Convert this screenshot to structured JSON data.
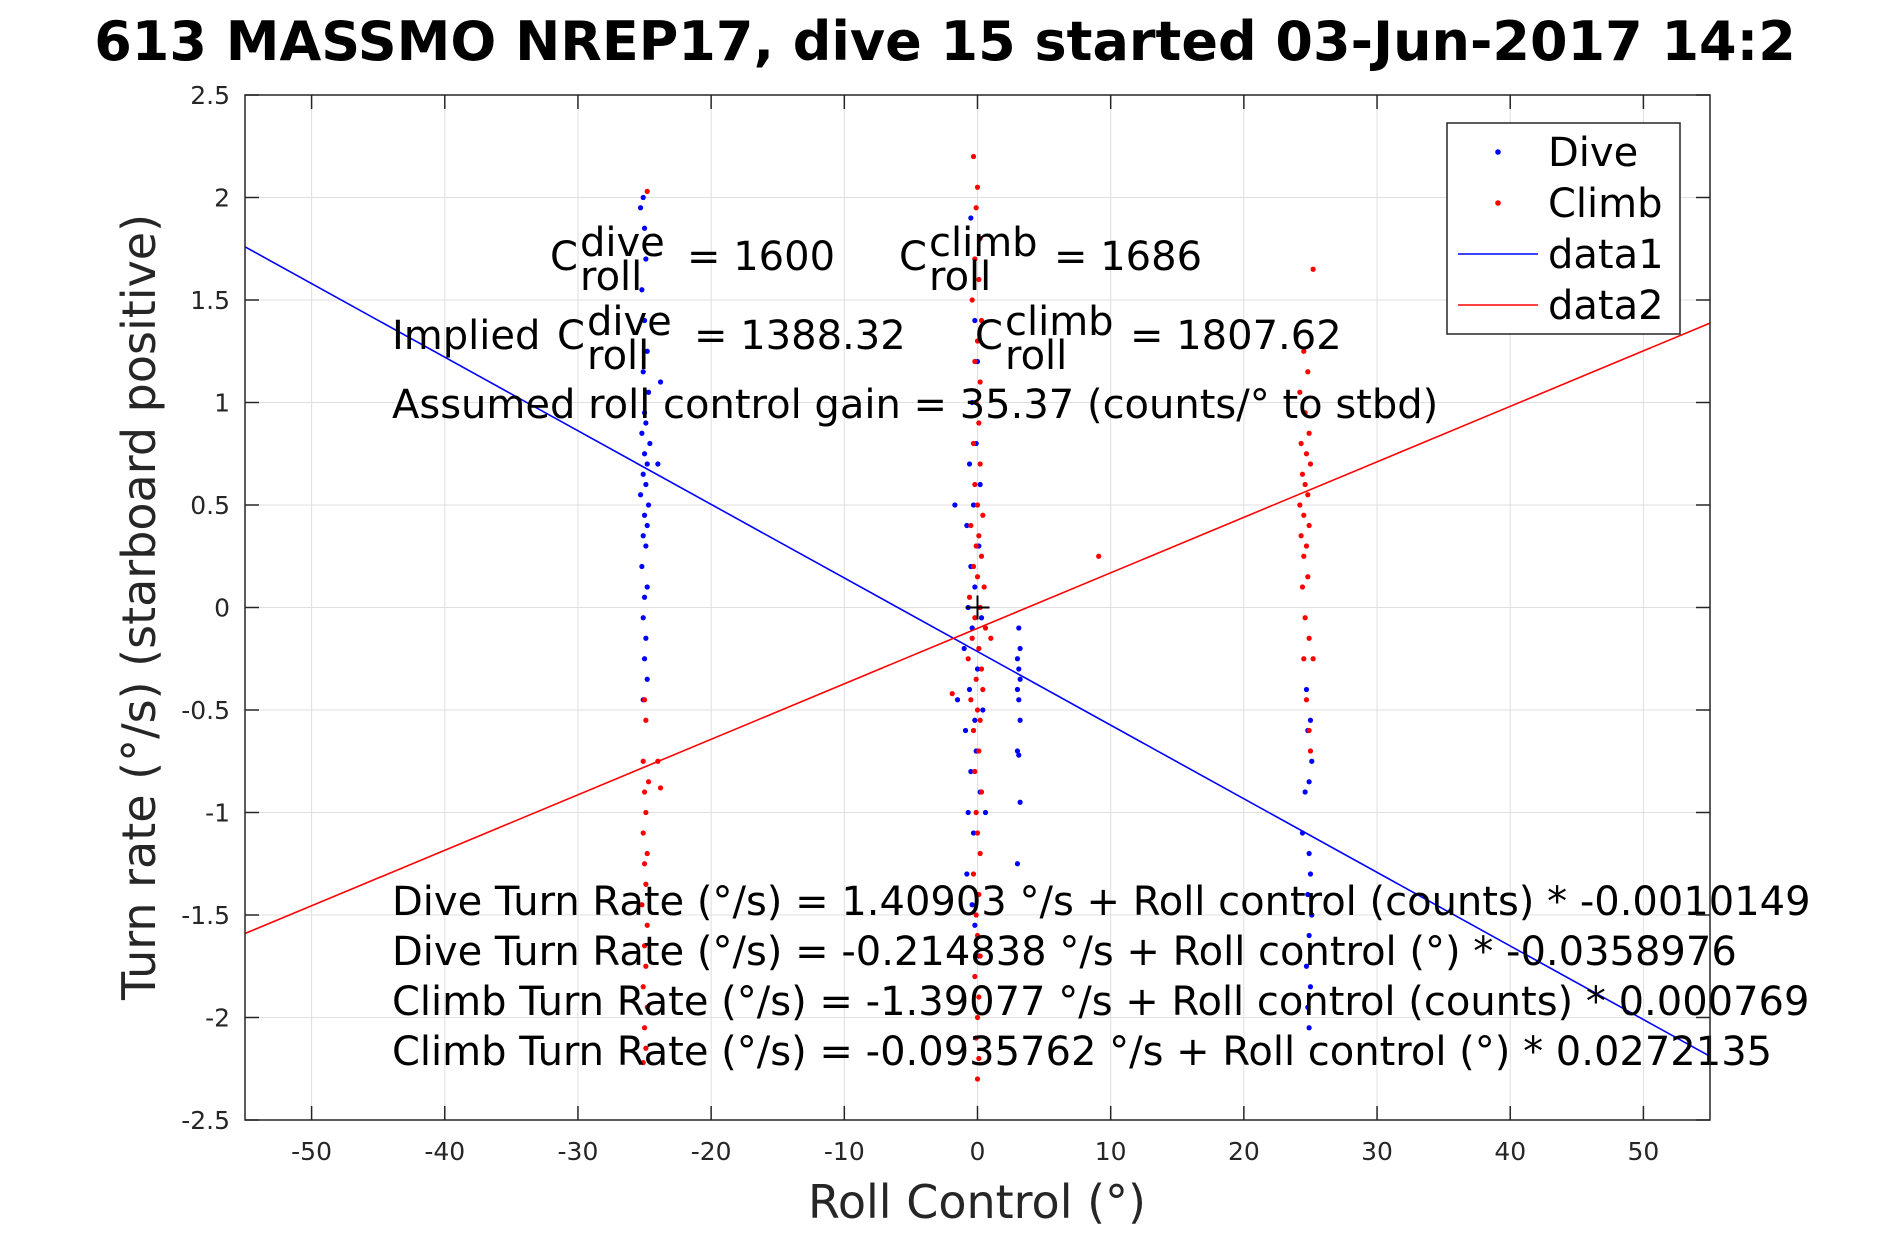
{
  "figure": {
    "title": "613 MASSMO NREP17, dive 15 started 03-Jun-2017 14:2"
  },
  "chart_data": {
    "type": "scatter",
    "title": "613 MASSMO NREP17, dive 15 started 03-Jun-2017 14:2",
    "xlabel": "Roll Control (°)",
    "ylabel": "Turn rate (°/s) (starboard positive)",
    "xlim": [
      -55,
      55
    ],
    "ylim": [
      -2.5,
      2.5
    ],
    "xticks": [
      -50,
      -40,
      -30,
      -20,
      -10,
      0,
      10,
      20,
      30,
      40,
      50
    ],
    "yticks": [
      2.5,
      2,
      1.5,
      1,
      0.5,
      0,
      -0.5,
      -1,
      -1.5,
      -2,
      -2.5
    ],
    "ytick_labels": [
      "2.5",
      "2",
      "1.5",
      "1",
      "0.5",
      "0",
      "-0.5",
      "-1",
      "-1.5",
      "-2",
      "-2.5"
    ],
    "grid": true,
    "legend_position": "top-right",
    "series": [
      {
        "name": "Dive",
        "kind": "points",
        "color": "#0000ff",
        "points": [
          [
            -25.1,
            2.0
          ],
          [
            -25.3,
            1.95
          ],
          [
            -25.0,
            1.85
          ],
          [
            -24.9,
            1.7
          ],
          [
            -25.2,
            1.55
          ],
          [
            -25.0,
            1.4
          ],
          [
            -24.8,
            1.25
          ],
          [
            -25.1,
            1.15
          ],
          [
            -24.7,
            1.05
          ],
          [
            -25.0,
            0.95
          ],
          [
            -24.9,
            0.9
          ],
          [
            -25.2,
            0.85
          ],
          [
            -24.6,
            0.8
          ],
          [
            -25.0,
            0.75
          ],
          [
            -24.8,
            0.7
          ],
          [
            -25.1,
            0.65
          ],
          [
            -24.9,
            0.6
          ],
          [
            -25.3,
            0.55
          ],
          [
            -24.7,
            0.5
          ],
          [
            -25.0,
            0.45
          ],
          [
            -24.8,
            0.4
          ],
          [
            -25.1,
            0.35
          ],
          [
            -24.9,
            0.3
          ],
          [
            -25.2,
            0.2
          ],
          [
            -24.8,
            0.1
          ],
          [
            -25.0,
            0.05
          ],
          [
            -25.1,
            -0.05
          ],
          [
            -24.9,
            -0.15
          ],
          [
            -25.0,
            -0.25
          ],
          [
            -24.8,
            -0.35
          ],
          [
            -25.1,
            -0.45
          ],
          [
            -23.8,
            1.1
          ],
          [
            -24.0,
            0.7
          ],
          [
            -0.5,
            1.9
          ],
          [
            -0.2,
            1.4
          ],
          [
            0.0,
            1.2
          ],
          [
            -0.4,
            1.0
          ],
          [
            -0.1,
            0.8
          ],
          [
            -0.6,
            0.7
          ],
          [
            0.2,
            0.6
          ],
          [
            -0.3,
            0.5
          ],
          [
            -0.8,
            0.4
          ],
          [
            0.1,
            0.3
          ],
          [
            -0.5,
            0.2
          ],
          [
            -0.2,
            0.1
          ],
          [
            -0.7,
            0.0
          ],
          [
            0.3,
            -0.05
          ],
          [
            -0.4,
            -0.1
          ],
          [
            -1.0,
            -0.2
          ],
          [
            0.0,
            -0.3
          ],
          [
            -0.6,
            -0.4
          ],
          [
            -1.5,
            -0.45
          ],
          [
            0.4,
            -0.5
          ],
          [
            -0.2,
            -0.55
          ],
          [
            -0.9,
            -0.6
          ],
          [
            -0.1,
            -0.7
          ],
          [
            -0.5,
            -0.8
          ],
          [
            0.2,
            -0.9
          ],
          [
            -0.7,
            -1.0
          ],
          [
            -0.3,
            -1.1
          ],
          [
            0.6,
            -1.0
          ],
          [
            -1.7,
            0.5
          ],
          [
            -0.8,
            -1.3
          ],
          [
            -0.4,
            -1.45
          ],
          [
            -0.2,
            -1.55
          ],
          [
            0.1,
            -1.7
          ],
          [
            3.1,
            -0.1
          ],
          [
            3.2,
            -0.2
          ],
          [
            3.0,
            -0.25
          ],
          [
            3.1,
            -0.3
          ],
          [
            3.2,
            -0.35
          ],
          [
            3.0,
            -0.4
          ],
          [
            3.1,
            -0.45
          ],
          [
            3.2,
            -0.55
          ],
          [
            3.0,
            -0.7
          ],
          [
            3.1,
            -0.72
          ],
          [
            3.2,
            -0.95
          ],
          [
            3.0,
            -1.25
          ],
          [
            24.7,
            -0.4
          ],
          [
            25.0,
            -0.55
          ],
          [
            24.8,
            -0.6
          ],
          [
            25.1,
            -0.75
          ],
          [
            24.9,
            -0.85
          ],
          [
            24.6,
            -0.9
          ],
          [
            24.4,
            -1.1
          ],
          [
            24.9,
            -1.2
          ],
          [
            25.0,
            -1.3
          ],
          [
            24.8,
            -1.4
          ],
          [
            25.1,
            -1.5
          ],
          [
            24.9,
            -1.6
          ],
          [
            24.7,
            -1.75
          ],
          [
            25.0,
            -1.85
          ],
          [
            24.8,
            -1.95
          ],
          [
            24.9,
            -2.05
          ]
        ]
      },
      {
        "name": "Climb",
        "kind": "points",
        "color": "#ff0000",
        "points": [
          [
            -24.8,
            2.03
          ],
          [
            -25.0,
            -0.45
          ],
          [
            -24.9,
            -0.55
          ],
          [
            -25.1,
            -0.75
          ],
          [
            -24.0,
            -0.75
          ],
          [
            -23.8,
            -0.88
          ],
          [
            -24.7,
            -0.85
          ],
          [
            -25.0,
            -0.9
          ],
          [
            -24.9,
            -1.0
          ],
          [
            -25.1,
            -1.1
          ],
          [
            -24.8,
            -1.2
          ],
          [
            -25.0,
            -1.25
          ],
          [
            -24.9,
            -1.35
          ],
          [
            -25.2,
            -1.45
          ],
          [
            -24.8,
            -1.55
          ],
          [
            -25.0,
            -1.65
          ],
          [
            -24.9,
            -1.75
          ],
          [
            -25.1,
            -1.85
          ],
          [
            -24.8,
            -1.95
          ],
          [
            -25.0,
            -2.05
          ],
          [
            -24.9,
            -2.15
          ],
          [
            -25.1,
            -2.22
          ],
          [
            -0.3,
            2.2
          ],
          [
            0.0,
            2.05
          ],
          [
            -0.1,
            1.95
          ],
          [
            0.2,
            1.8
          ],
          [
            -0.2,
            1.7
          ],
          [
            0.1,
            1.6
          ],
          [
            -0.4,
            1.5
          ],
          [
            0.3,
            1.4
          ],
          [
            0.0,
            1.3
          ],
          [
            -0.2,
            1.2
          ],
          [
            0.2,
            1.1
          ],
          [
            -0.1,
            1.0
          ],
          [
            0.1,
            0.9
          ],
          [
            -0.3,
            0.8
          ],
          [
            0.2,
            0.7
          ],
          [
            -0.2,
            0.6
          ],
          [
            0.0,
            0.5
          ],
          [
            0.4,
            0.45
          ],
          [
            -0.5,
            0.4
          ],
          [
            0.1,
            0.35
          ],
          [
            -0.1,
            0.3
          ],
          [
            0.3,
            0.25
          ],
          [
            -0.3,
            0.2
          ],
          [
            0.0,
            0.15
          ],
          [
            0.5,
            0.1
          ],
          [
            -0.6,
            0.05
          ],
          [
            0.2,
            0.0
          ],
          [
            -0.2,
            -0.05
          ],
          [
            0.6,
            -0.1
          ],
          [
            -0.4,
            -0.15
          ],
          [
            0.1,
            -0.2
          ],
          [
            -0.7,
            -0.25
          ],
          [
            0.3,
            -0.3
          ],
          [
            -0.1,
            -0.35
          ],
          [
            0.4,
            -0.4
          ],
          [
            -0.5,
            -0.45
          ],
          [
            0.0,
            -0.5
          ],
          [
            0.2,
            -0.55
          ],
          [
            -0.3,
            -0.6
          ],
          [
            0.1,
            -0.7
          ],
          [
            -0.2,
            -0.8
          ],
          [
            0.3,
            -0.9
          ],
          [
            -0.1,
            -1.0
          ],
          [
            0.0,
            -1.1
          ],
          [
            0.2,
            -1.2
          ],
          [
            -0.3,
            -1.3
          ],
          [
            0.1,
            -1.4
          ],
          [
            -0.1,
            -1.5
          ],
          [
            0.0,
            -1.6
          ],
          [
            0.2,
            -1.7
          ],
          [
            -0.2,
            -1.8
          ],
          [
            0.1,
            -1.9
          ],
          [
            0.0,
            -2.0
          ],
          [
            -0.1,
            -2.1
          ],
          [
            0.1,
            -2.2
          ],
          [
            0.0,
            -2.3
          ],
          [
            -1.9,
            -0.42
          ],
          [
            1.0,
            -0.15
          ],
          [
            9.1,
            0.25
          ],
          [
            24.5,
            1.25
          ],
          [
            24.8,
            1.15
          ],
          [
            24.2,
            1.05
          ],
          [
            24.6,
            0.95
          ],
          [
            24.9,
            0.85
          ],
          [
            24.3,
            0.8
          ],
          [
            24.7,
            0.75
          ],
          [
            25.0,
            0.7
          ],
          [
            24.4,
            0.65
          ],
          [
            24.6,
            0.6
          ],
          [
            24.8,
            0.55
          ],
          [
            24.2,
            0.5
          ],
          [
            24.5,
            0.45
          ],
          [
            24.9,
            0.4
          ],
          [
            24.3,
            0.35
          ],
          [
            24.7,
            0.3
          ],
          [
            24.5,
            0.25
          ],
          [
            24.8,
            0.15
          ],
          [
            24.4,
            0.1
          ],
          [
            24.6,
            -0.05
          ],
          [
            24.9,
            -0.15
          ],
          [
            24.5,
            -0.25
          ],
          [
            25.2,
            -0.25
          ],
          [
            24.7,
            -0.45
          ],
          [
            24.9,
            -0.6
          ],
          [
            25.0,
            -0.7
          ],
          [
            25.2,
            1.65
          ]
        ]
      },
      {
        "name": "data1",
        "kind": "line",
        "color": "#0000ff",
        "points": [
          [
            -55,
            1.7596
          ],
          [
            55,
            -2.1895
          ]
        ]
      },
      {
        "name": "data2",
        "kind": "line",
        "color": "#ff0000",
        "points": [
          [
            -55,
            -1.5903
          ],
          [
            55,
            1.3873
          ]
        ]
      }
    ],
    "marker": {
      "symbol": "+",
      "x": 0,
      "y": 0,
      "color": "#000000"
    },
    "legend": {
      "position": "top-right",
      "entries": [
        {
          "label": "Dive",
          "color": "#0000ff",
          "style": "dot"
        },
        {
          "label": "Climb",
          "color": "#ff0000",
          "style": "dot"
        },
        {
          "label": "data1",
          "color": "#0000ff",
          "style": "line"
        },
        {
          "label": "data2",
          "color": "#ff0000",
          "style": "line"
        }
      ]
    },
    "annotations": {
      "c_dive": {
        "prefix": "C",
        "sup": "dive",
        "sub": "roll",
        "value": "= 1600"
      },
      "c_climb": {
        "prefix": "C",
        "sup": "climb",
        "sub": "roll",
        "value": "= 1686"
      },
      "implied_dive": {
        "lead": "Implied",
        "prefix": "C",
        "sup": "dive",
        "sub": "roll",
        "value": "= 1388.32"
      },
      "implied_climb": {
        "prefix": "C",
        "sup": "climb",
        "sub": "roll",
        "value": "= 1807.62"
      },
      "gain": "Assumed roll control gain = 35.37 (counts/° to stbd)",
      "equations": [
        "Dive Turn Rate (°/s) = 1.40903 °/s + Roll control (counts) * -0.0010149",
        "Dive Turn Rate (°/s) = -0.214838 °/s + Roll control (°) * -0.0358976",
        "Climb Turn Rate (°/s) = -1.39077 °/s + Roll control (counts) * 0.000769",
        "Climb Turn Rate (°/s) = -0.0935762 °/s + Roll control (°) * 0.0272135"
      ]
    }
  }
}
